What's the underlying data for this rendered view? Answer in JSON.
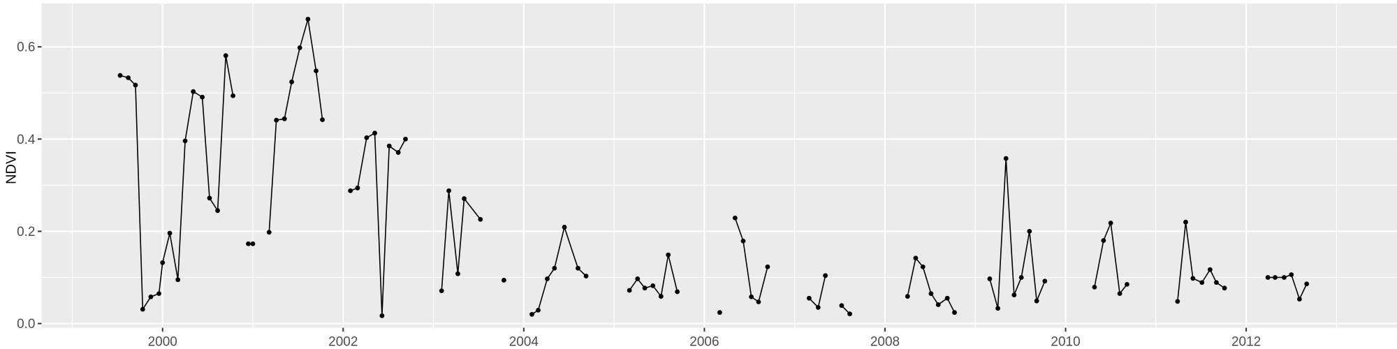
{
  "style": {
    "figure_bg": "#FFFFFF",
    "panel_bg": "#EBEBEB",
    "grid_color": "#FFFFFF",
    "line_color": "#000000",
    "point_color": "#000000",
    "tick_color": "#333333",
    "axis_text_color": "#4D4D4D",
    "axis_title_color": "#000000"
  },
  "chart_data": {
    "type": "line",
    "title": "",
    "xlabel": "",
    "ylabel": "NDVI",
    "legend_position": "none",
    "grid": "major+minor",
    "point_style": "filled-circle",
    "xlim": [
      1998.66,
      2013.67
    ],
    "ylim": [
      -0.009,
      0.694
    ],
    "x_ticks": {
      "values": [
        2000,
        2002,
        2004,
        2006,
        2008,
        2010,
        2012
      ],
      "labels": [
        "2000",
        "2002",
        "2004",
        "2006",
        "2008",
        "2010",
        "2012"
      ]
    },
    "x_minor": [
      1999,
      2001,
      2003,
      2005,
      2007,
      2009,
      2011,
      2013
    ],
    "y_ticks": {
      "values": [
        0.0,
        0.2,
        0.4,
        0.6
      ],
      "labels": [
        "0.0",
        "0.2",
        "0.4",
        "0.6"
      ]
    },
    "y_minor": [
      0.1,
      0.3,
      0.5
    ],
    "segments": [
      [
        [
          1999.53,
          0.538
        ],
        [
          1999.62,
          0.533
        ],
        [
          1999.7,
          0.517
        ],
        [
          1999.78,
          0.031
        ],
        [
          1999.87,
          0.058
        ],
        [
          1999.96,
          0.065
        ],
        [
          2000.0,
          0.132
        ],
        [
          2000.08,
          0.196
        ],
        [
          2000.17,
          0.095
        ],
        [
          2000.25,
          0.396
        ],
        [
          2000.34,
          0.503
        ],
        [
          2000.44,
          0.491
        ],
        [
          2000.52,
          0.272
        ],
        [
          2000.61,
          0.245
        ],
        [
          2000.7,
          0.581
        ],
        [
          2000.78,
          0.494
        ]
      ],
      [
        [
          2000.95,
          0.173
        ],
        [
          2001.0,
          0.173
        ]
      ],
      [
        [
          2001.18,
          0.198
        ],
        [
          2001.26,
          0.441
        ],
        [
          2001.35,
          0.444
        ],
        [
          2001.43,
          0.524
        ],
        [
          2001.52,
          0.598
        ],
        [
          2001.61,
          0.66
        ],
        [
          2001.7,
          0.548
        ],
        [
          2001.77,
          0.442
        ]
      ],
      [
        [
          2002.08,
          0.288
        ],
        [
          2002.16,
          0.294
        ],
        [
          2002.26,
          0.403
        ],
        [
          2002.35,
          0.413
        ],
        [
          2002.43,
          0.017
        ],
        [
          2002.51,
          0.385
        ],
        [
          2002.61,
          0.371
        ],
        [
          2002.69,
          0.4
        ]
      ],
      [
        [
          2003.09,
          0.071
        ],
        [
          2003.17,
          0.288
        ],
        [
          2003.27,
          0.108
        ],
        [
          2003.34,
          0.271
        ],
        [
          2003.52,
          0.226
        ]
      ],
      [
        [
          2003.78,
          0.094
        ]
      ],
      [
        [
          2004.09,
          0.02
        ],
        [
          2004.16,
          0.029
        ],
        [
          2004.26,
          0.097
        ],
        [
          2004.34,
          0.12
        ],
        [
          2004.45,
          0.209
        ],
        [
          2004.6,
          0.12
        ],
        [
          2004.69,
          0.103
        ]
      ],
      [
        [
          2005.17,
          0.072
        ],
        [
          2005.26,
          0.097
        ],
        [
          2005.34,
          0.077
        ],
        [
          2005.43,
          0.082
        ],
        [
          2005.52,
          0.059
        ],
        [
          2005.6,
          0.149
        ],
        [
          2005.7,
          0.069
        ]
      ],
      [
        [
          2006.17,
          0.024
        ]
      ],
      [
        [
          2006.34,
          0.229
        ],
        [
          2006.43,
          0.179
        ],
        [
          2006.52,
          0.058
        ],
        [
          2006.6,
          0.047
        ],
        [
          2006.7,
          0.123
        ]
      ],
      [
        [
          2007.16,
          0.055
        ],
        [
          2007.26,
          0.035
        ],
        [
          2007.34,
          0.104
        ]
      ],
      [
        [
          2007.52,
          0.039
        ],
        [
          2007.61,
          0.021
        ]
      ],
      [
        [
          2008.25,
          0.059
        ],
        [
          2008.34,
          0.142
        ],
        [
          2008.42,
          0.123
        ],
        [
          2008.51,
          0.065
        ],
        [
          2008.59,
          0.041
        ],
        [
          2008.69,
          0.055
        ],
        [
          2008.77,
          0.024
        ]
      ],
      [
        [
          2009.16,
          0.097
        ],
        [
          2009.25,
          0.033
        ],
        [
          2009.34,
          0.358
        ],
        [
          2009.43,
          0.062
        ],
        [
          2009.51,
          0.1
        ],
        [
          2009.6,
          0.2
        ],
        [
          2009.68,
          0.049
        ],
        [
          2009.77,
          0.092
        ]
      ],
      [
        [
          2010.32,
          0.079
        ],
        [
          2010.42,
          0.18
        ],
        [
          2010.5,
          0.218
        ],
        [
          2010.6,
          0.065
        ],
        [
          2010.68,
          0.085
        ]
      ],
      [
        [
          2011.24,
          0.048
        ],
        [
          2011.33,
          0.22
        ],
        [
          2011.41,
          0.098
        ],
        [
          2011.51,
          0.089
        ],
        [
          2011.6,
          0.117
        ],
        [
          2011.67,
          0.089
        ],
        [
          2011.76,
          0.077
        ]
      ],
      [
        [
          2012.24,
          0.1
        ],
        [
          2012.32,
          0.1
        ],
        [
          2012.42,
          0.1
        ],
        [
          2012.5,
          0.106
        ],
        [
          2012.59,
          0.053
        ],
        [
          2012.67,
          0.086
        ]
      ]
    ]
  }
}
